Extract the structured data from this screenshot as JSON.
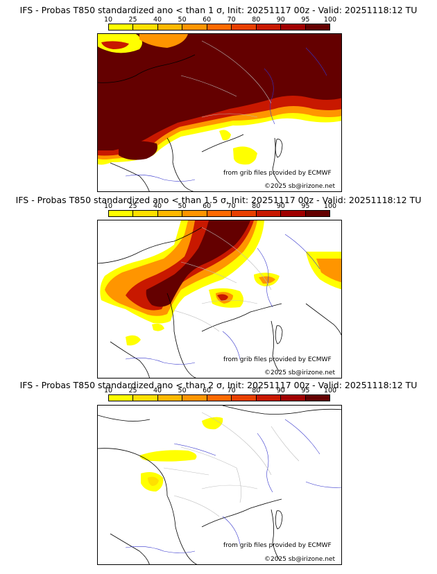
{
  "colorbar": {
    "ticks": [
      "10",
      "25",
      "40",
      "50",
      "60",
      "70",
      "80",
      "90",
      "95",
      "100"
    ],
    "colors": [
      "#ffff00",
      "#ffe000",
      "#ffb800",
      "#ff9500",
      "#ff6a00",
      "#e84000",
      "#c81800",
      "#a00000",
      "#640000"
    ]
  },
  "panels": [
    {
      "title": "IFS - Probas T850  standardized ano < than 1 σ, Init: 20251117 00z - Valid: 20251118:12 TU",
      "source": "from grib files provided by ECMWF",
      "copyright": "©2025 sb@irizone.net"
    },
    {
      "title": "IFS - Probas T850  standardized ano < than 1.5 σ, Init: 20251117 00z - Valid: 20251118:12 TU",
      "source": "from grib files provided by ECMWF",
      "copyright": "©2025 sb@irizone.net"
    },
    {
      "title": "IFS - Probas T850  standardized ano < than 2 σ, Init: 20251117 00z - Valid: 20251118:12 TU",
      "source": "from grib files provided by ECMWF",
      "copyright": "©2025 sb@irizone.net"
    }
  ]
}
